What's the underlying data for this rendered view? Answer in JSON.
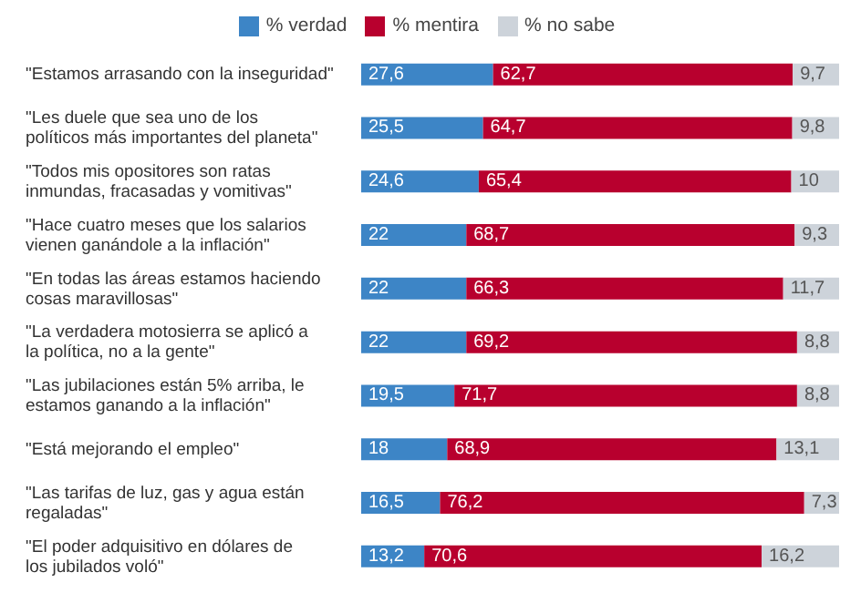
{
  "chart_data": {
    "type": "bar",
    "orientation": "horizontal",
    "stacked": true,
    "legend": "top",
    "tick_labels": "y",
    "xlim": [
      0,
      100
    ],
    "categories": [
      "\"Estamos arrasando con la inseguridad\"",
      "\"Les duele que sea uno de los políticos más importantes del planeta\"",
      "\"Todos mis opositores son ratas inmundas, fracasadas y vomitivas\"",
      "\"Hace cuatro meses que los salarios vienen ganándole a la inflación\"",
      "\"En todas las áreas estamos haciendo cosas maravillosas\"",
      "\"La verdadera motosierra se aplicó a la política, no a la gente\"",
      "\"Las jubilaciones están 5% arriba, le estamos ganando a la inflación\"",
      "\"Está mejorando el empleo\"",
      "\"Las tarifas de luz, gas y agua están regaladas\"",
      "\"El poder adquisitivo en dólares de los jubilados voló\""
    ],
    "series": [
      {
        "name": "% verdad",
        "color": "#3d85c6",
        "values": [
          27.6,
          25.5,
          24.6,
          22,
          22,
          22,
          19.5,
          18,
          16.5,
          13.2
        ],
        "value_labels": [
          "27,6",
          "25,5",
          "24,6",
          "22",
          "22",
          "22",
          "19,5",
          "18",
          "16,5",
          "13,2"
        ]
      },
      {
        "name": "% mentira",
        "color": "#b8002e",
        "values": [
          62.7,
          64.7,
          65.4,
          68.7,
          66.3,
          69.2,
          71.7,
          68.9,
          76.2,
          70.6
        ],
        "value_labels": [
          "62,7",
          "64,7",
          "65,4",
          "68,7",
          "66,3",
          "69,2",
          "71,7",
          "68,9",
          "76,2",
          "70,6"
        ]
      },
      {
        "name": "% no sabe",
        "color": "#cdd3da",
        "values": [
          9.7,
          9.8,
          10,
          9.3,
          11.7,
          8.8,
          8.8,
          13.1,
          7.3,
          16.2
        ],
        "value_labels": [
          "9,7",
          "9,8",
          "10",
          "9,3",
          "11,7",
          "8,8",
          "8,8",
          "13,1",
          "7,3",
          "16,2"
        ]
      }
    ]
  }
}
